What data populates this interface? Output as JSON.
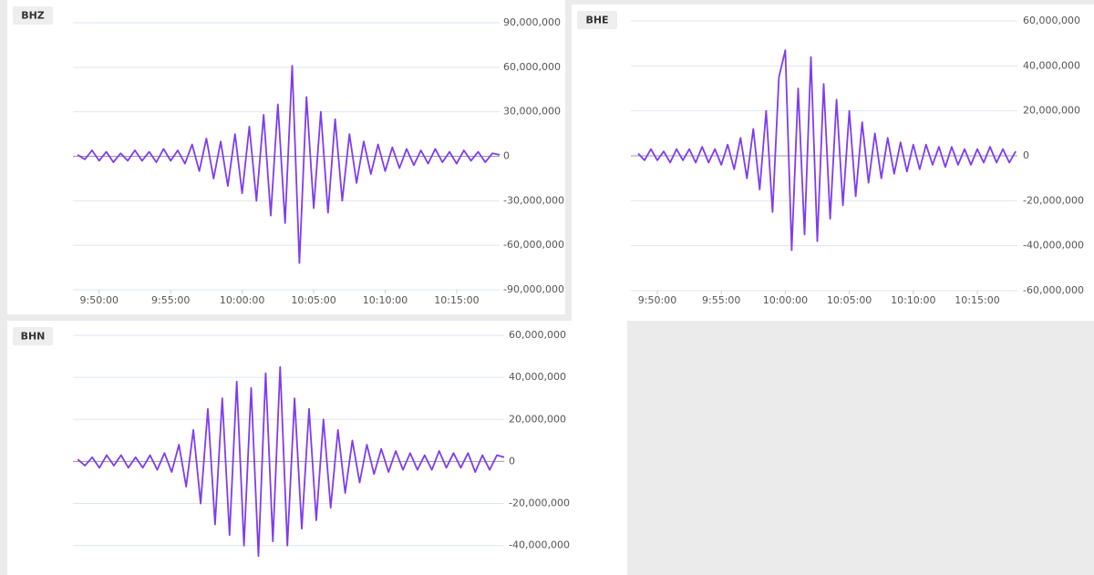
{
  "chart_data": [
    {
      "type": "line",
      "title": "BHZ",
      "x": [
        "9:48:30",
        "9:49:00",
        "9:49:30",
        "9:50:00",
        "9:50:30",
        "9:51:00",
        "9:51:30",
        "9:52:00",
        "9:52:30",
        "9:53:00",
        "9:53:30",
        "9:54:00",
        "9:54:30",
        "9:55:00",
        "9:55:30",
        "9:56:00",
        "9:56:30",
        "9:57:00",
        "9:57:30",
        "9:58:00",
        "9:58:30",
        "9:59:00",
        "9:59:30",
        "10:00:00",
        "10:00:30",
        "10:01:00",
        "10:01:30",
        "10:02:00",
        "10:02:30",
        "10:03:00",
        "10:03:30",
        "10:04:00",
        "10:04:30",
        "10:05:00",
        "10:05:30",
        "10:06:00",
        "10:06:30",
        "10:07:00",
        "10:07:30",
        "10:08:00",
        "10:08:30",
        "10:09:00",
        "10:09:30",
        "10:10:00",
        "10:10:30",
        "10:11:00",
        "10:11:30",
        "10:12:00",
        "10:12:30",
        "10:13:00",
        "10:13:30",
        "10:14:00",
        "10:14:30",
        "10:15:00",
        "10:15:30",
        "10:16:00",
        "10:16:30",
        "10:17:00",
        "10:17:30",
        "10:18:00"
      ],
      "series": [
        {
          "color": "#7f3cf0",
          "values": [
            1000000,
            -2000000,
            4000000,
            -3000000,
            3000000,
            -4000000,
            2000000,
            -3000000,
            4000000,
            -3000000,
            3000000,
            -4000000,
            5000000,
            -3000000,
            4000000,
            -5000000,
            8000000,
            -10000000,
            12000000,
            -15000000,
            10000000,
            -20000000,
            15000000,
            -25000000,
            20000000,
            -30000000,
            28000000,
            -40000000,
            35000000,
            -45000000,
            61000000,
            -72000000,
            40000000,
            -35000000,
            30000000,
            -38000000,
            25000000,
            -30000000,
            15000000,
            -18000000,
            10000000,
            -12000000,
            8000000,
            -10000000,
            6000000,
            -8000000,
            5000000,
            -6000000,
            4000000,
            -5000000,
            5000000,
            -4000000,
            3000000,
            -5000000,
            4000000,
            -3000000,
            3000000,
            -4000000,
            2000000,
            1000000
          ]
        }
      ],
      "xlim": [
        "9:48:10",
        "10:18:00"
      ],
      "xticks": [
        "9:50:00",
        "9:55:00",
        "10:00:00",
        "10:05:00",
        "10:10:00",
        "10:15:00"
      ],
      "ylim": [
        -90000000,
        90000000
      ],
      "yticks": [
        {
          "value": 90000000,
          "label": "90,000,000"
        },
        {
          "value": 60000000,
          "label": "60,000,000"
        },
        {
          "value": 30000000,
          "label": "30,000,000"
        },
        0,
        {
          "value": -30000000,
          "label": "-30,000,000"
        },
        {
          "value": -60000000,
          "label": "-60,000,000"
        },
        {
          "value": -90000000,
          "label": "-90,000,000"
        }
      ],
      "grid": true
    },
    {
      "type": "line",
      "title": "BHE",
      "x": [
        "9:48:30",
        "9:49:00",
        "9:49:30",
        "9:50:00",
        "9:50:30",
        "9:51:00",
        "9:51:30",
        "9:52:00",
        "9:52:30",
        "9:53:00",
        "9:53:30",
        "9:54:00",
        "9:54:30",
        "9:55:00",
        "9:55:30",
        "9:56:00",
        "9:56:30",
        "9:57:00",
        "9:57:30",
        "9:58:00",
        "9:58:30",
        "9:59:00",
        "9:59:30",
        "10:00:00",
        "10:00:30",
        "10:01:00",
        "10:01:30",
        "10:02:00",
        "10:02:30",
        "10:03:00",
        "10:03:30",
        "10:04:00",
        "10:04:30",
        "10:05:00",
        "10:05:30",
        "10:06:00",
        "10:06:30",
        "10:07:00",
        "10:07:30",
        "10:08:00",
        "10:08:30",
        "10:09:00",
        "10:09:30",
        "10:10:00",
        "10:10:30",
        "10:11:00",
        "10:11:30",
        "10:12:00",
        "10:12:30",
        "10:13:00",
        "10:13:30",
        "10:14:00",
        "10:14:30",
        "10:15:00",
        "10:15:30",
        "10:16:00",
        "10:16:30",
        "10:17:00",
        "10:17:30",
        "10:18:00"
      ],
      "series": [
        {
          "color": "#7f3cf0",
          "values": [
            1000000,
            -2000000,
            3000000,
            -2000000,
            2000000,
            -3000000,
            3000000,
            -2000000,
            3000000,
            -3000000,
            4000000,
            -3000000,
            3000000,
            -4000000,
            5000000,
            -6000000,
            8000000,
            -10000000,
            12000000,
            -15000000,
            20000000,
            -25000000,
            35000000,
            47000000,
            -42000000,
            30000000,
            -35000000,
            44000000,
            -38000000,
            32000000,
            -28000000,
            25000000,
            -22000000,
            20000000,
            -18000000,
            15000000,
            -12000000,
            10000000,
            -10000000,
            8000000,
            -8000000,
            6000000,
            -7000000,
            5000000,
            -6000000,
            5000000,
            -4000000,
            4000000,
            -5000000,
            4000000,
            -4000000,
            3000000,
            -4000000,
            3000000,
            -3000000,
            4000000,
            -3000000,
            3000000,
            -3000000,
            2000000
          ]
        }
      ],
      "xlim": [
        "9:47:56",
        "10:18:08"
      ],
      "xticks": [
        "9:50:00",
        "9:55:00",
        "10:00:00",
        "10:05:00",
        "10:10:00",
        "10:15:00"
      ],
      "ylim": [
        -60000000,
        60000000
      ],
      "yticks": [
        {
          "value": 60000000,
          "label": "60,000,000"
        },
        {
          "value": 40000000,
          "label": "40,000,000"
        },
        {
          "value": 20000000,
          "label": "20,000,000"
        },
        0,
        {
          "value": -20000000,
          "label": "-20,000,000"
        },
        {
          "value": -40000000,
          "label": "-40,000,000"
        },
        {
          "value": -60000000,
          "label": "-60,000,000"
        }
      ],
      "grid": true
    },
    {
      "type": "line",
      "title": "BHN",
      "x": [
        "9:48:30",
        "9:49:00",
        "9:49:30",
        "9:50:00",
        "9:50:30",
        "9:51:00",
        "9:51:30",
        "9:52:00",
        "9:52:30",
        "9:53:00",
        "9:53:30",
        "9:54:00",
        "9:54:30",
        "9:55:00",
        "9:55:30",
        "9:56:00",
        "9:56:30",
        "9:57:00",
        "9:57:30",
        "9:58:00",
        "9:58:30",
        "9:59:00",
        "9:59:30",
        "10:00:00",
        "10:00:30",
        "10:01:00",
        "10:01:30",
        "10:02:00",
        "10:02:30",
        "10:03:00",
        "10:03:30",
        "10:04:00",
        "10:04:30",
        "10:05:00",
        "10:05:30",
        "10:06:00",
        "10:06:30",
        "10:07:00",
        "10:07:30",
        "10:08:00",
        "10:08:30",
        "10:09:00",
        "10:09:30",
        "10:10:00",
        "10:10:30",
        "10:11:00",
        "10:11:30",
        "10:12:00",
        "10:12:30",
        "10:13:00",
        "10:13:30",
        "10:14:00",
        "10:14:30",
        "10:15:00",
        "10:15:30",
        "10:16:00",
        "10:16:30",
        "10:17:00",
        "10:17:30",
        "10:18:00"
      ],
      "series": [
        {
          "color": "#7f3cf0",
          "values": [
            1000000,
            -2000000,
            2000000,
            -3000000,
            3000000,
            -2000000,
            3000000,
            -3000000,
            2000000,
            -3000000,
            3000000,
            -4000000,
            4000000,
            -5000000,
            8000000,
            -12000000,
            15000000,
            -20000000,
            25000000,
            -30000000,
            30000000,
            -35000000,
            38000000,
            -40000000,
            35000000,
            -45000000,
            42000000,
            -38000000,
            45000000,
            -40000000,
            30000000,
            -32000000,
            25000000,
            -28000000,
            20000000,
            -22000000,
            15000000,
            -15000000,
            10000000,
            -10000000,
            8000000,
            -6000000,
            6000000,
            -5000000,
            5000000,
            -4000000,
            4000000,
            -4000000,
            3000000,
            -4000000,
            5000000,
            -3000000,
            4000000,
            -3000000,
            4000000,
            -5000000,
            3000000,
            -4000000,
            3000000,
            2000000
          ]
        }
      ],
      "xlim": [
        "9:48:10",
        "10:18:00"
      ],
      "ylim": [
        -54000000,
        60000000
      ],
      "yticks": [
        {
          "value": 60000000,
          "label": "60,000,000"
        },
        {
          "value": 40000000,
          "label": "40,000,000"
        },
        {
          "value": 20000000,
          "label": "20,000,000"
        },
        0,
        {
          "value": -20000000,
          "label": "-20,000,000"
        },
        {
          "value": -40000000,
          "label": "-40,000,000"
        }
      ],
      "grid": true
    }
  ]
}
